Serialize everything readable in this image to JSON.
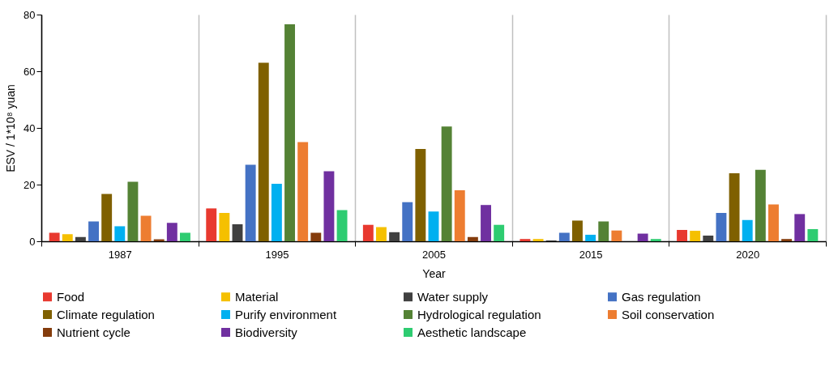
{
  "chart_data": {
    "type": "bar",
    "xlabel": "Year",
    "ylabel": "ESV / 1*10⁸ yuan",
    "categories": [
      "1987",
      "1995",
      "2005",
      "2015",
      "2020"
    ],
    "series": [
      {
        "name": "Food",
        "color": "#e8392f",
        "values": [
          3,
          11.6,
          5.8,
          0.8,
          4
        ]
      },
      {
        "name": "Material",
        "color": "#f5c000",
        "values": [
          2.5,
          10,
          5,
          0.8,
          3.7
        ]
      },
      {
        "name": "Water supply",
        "color": "#404040",
        "values": [
          1.5,
          6,
          3.2,
          0.3,
          2
        ]
      },
      {
        "name": "Gas regulation",
        "color": "#4472c4",
        "values": [
          7,
          27,
          13.8,
          3,
          10
        ]
      },
      {
        "name": "Climate regulation",
        "color": "#7f6000",
        "values": [
          16.7,
          63,
          32.6,
          7.3,
          24
        ]
      },
      {
        "name": "Purify environment",
        "color": "#00b0f0",
        "values": [
          5.3,
          20.3,
          10.5,
          2.3,
          7.5
        ]
      },
      {
        "name": "Hydrological regulation",
        "color": "#548235",
        "values": [
          21,
          76.6,
          40.5,
          7,
          25.2
        ]
      },
      {
        "name": "Soil conservation",
        "color": "#ed7d31",
        "values": [
          9,
          35,
          18,
          3.8,
          13
        ]
      },
      {
        "name": "Nutrient cycle",
        "color": "#843c0c",
        "values": [
          0.7,
          3,
          1.5,
          0,
          0.8
        ]
      },
      {
        "name": "Biodiversity",
        "color": "#7030a0",
        "values": [
          6.5,
          24.7,
          12.8,
          2.7,
          9.6
        ]
      },
      {
        "name": "Aesthetic landscape",
        "color": "#2ecc71",
        "values": [
          3,
          11,
          5.8,
          0.8,
          4.3
        ]
      }
    ],
    "ylim": [
      0,
      80
    ],
    "yticks": [
      0,
      20,
      40,
      60,
      80
    ],
    "grid": "x",
    "legend": "bottom"
  }
}
